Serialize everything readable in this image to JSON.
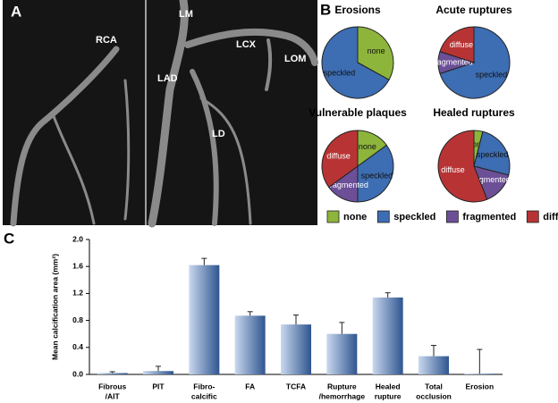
{
  "panel_a": {
    "letter": "A",
    "labels": [
      "RCA",
      "LM",
      "LCX",
      "LOM",
      "LAD",
      "LD"
    ]
  },
  "panel_b": {
    "letter": "B"
  },
  "panel_c": {
    "letter": "C"
  },
  "legend": {
    "labels": [
      "none",
      "speckled",
      "fragmented",
      "diffuse"
    ],
    "colors": [
      "#8db53c",
      "#3d6db2",
      "#6c4f96",
      "#b83434"
    ]
  },
  "chart_data": [
    {
      "type": "pie",
      "title": "Erosions",
      "categories": [
        "none",
        "speckled"
      ],
      "values": [
        33,
        67
      ],
      "colors": [
        "#8db53c",
        "#3d6db2"
      ]
    },
    {
      "type": "pie",
      "title": "Acute ruptures",
      "categories": [
        "speckled",
        "fragmented",
        "diffuse"
      ],
      "values": [
        70,
        10,
        20
      ],
      "colors": [
        "#3d6db2",
        "#6c4f96",
        "#b83434"
      ]
    },
    {
      "type": "pie",
      "title": "Vulnerable plaques",
      "categories": [
        "none",
        "speckled",
        "fragmented",
        "diffuse"
      ],
      "values": [
        15,
        35,
        15,
        35
      ],
      "colors": [
        "#8db53c",
        "#3d6db2",
        "#6c4f96",
        "#b83434"
      ]
    },
    {
      "type": "pie",
      "title": "Healed ruptures",
      "categories": [
        "none",
        "speckled",
        "fragmented",
        "diffuse"
      ],
      "values": [
        4,
        25,
        15,
        56
      ],
      "colors": [
        "#8db53c",
        "#3d6db2",
        "#6c4f96",
        "#b83434"
      ]
    },
    {
      "type": "bar",
      "y_label": "Mean calcification area (mm²)",
      "categories": [
        [
          "Fibrous",
          "/AIT"
        ],
        [
          "PIT"
        ],
        [
          "Fibro-",
          "calcific"
        ],
        [
          "FA"
        ],
        [
          "TCFA"
        ],
        [
          "Rupture",
          "/hemorrhage"
        ],
        [
          "Healed",
          "rupture"
        ],
        [
          "Total",
          "occlusion"
        ],
        [
          "Erosion"
        ]
      ],
      "values": [
        0.02,
        0.05,
        1.62,
        0.87,
        0.74,
        0.6,
        1.14,
        0.27,
        0.01
      ],
      "errors": [
        0.02,
        0.07,
        0.1,
        0.06,
        0.14,
        0.17,
        0.07,
        0.16,
        0.36
      ],
      "color": "#2f5590",
      "ylim": [
        0,
        2
      ],
      "yticks": [
        {
          "value": 0,
          "label": "0.0"
        },
        0.4,
        0.8,
        1.2,
        1.6,
        {
          "value": 2,
          "label": "2.0"
        }
      ]
    }
  ]
}
